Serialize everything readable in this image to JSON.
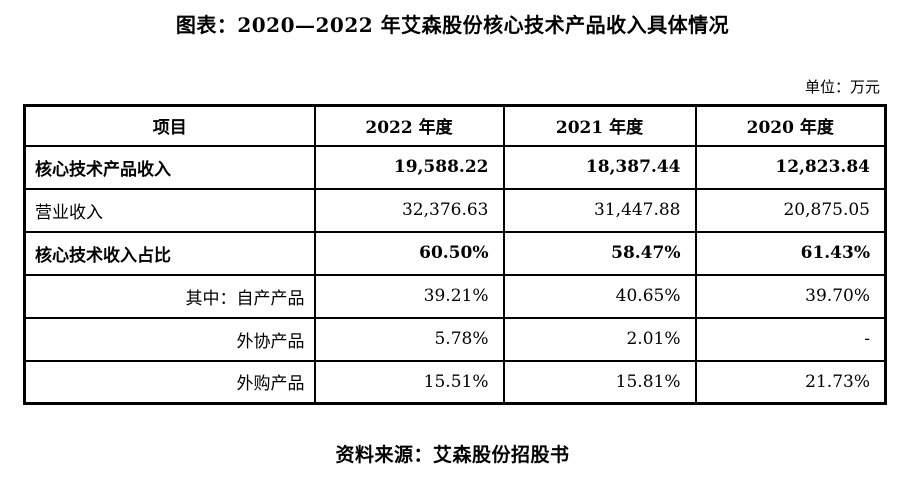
{
  "title": "图表：2020—2022 年艾森股份核心技术产品收入具体情况",
  "unit_label": "单位：万元",
  "source": "资料来源：艾森股份招股书",
  "colors": {
    "text": "#000000",
    "border": "#000000",
    "background": "#ffffff"
  },
  "table": {
    "headers": [
      "项目",
      "2022 年度",
      "2021 年度",
      "2020 年度"
    ],
    "rows": [
      {
        "label": "核心技术产品收入",
        "emphasis": true,
        "values": [
          "19,588.22",
          "18,387.44",
          "12,823.84"
        ]
      },
      {
        "label": "营业收入",
        "emphasis": false,
        "values": [
          "32,376.63",
          "31,447.88",
          "20,875.05"
        ]
      },
      {
        "label": "核心技术收入占比",
        "emphasis": true,
        "values": [
          "60.50%",
          "58.47%",
          "61.43%"
        ]
      },
      {
        "label": "其中：自产产品",
        "emphasis": false,
        "values": [
          "39.21%",
          "40.65%",
          "39.70%"
        ]
      },
      {
        "label": "外协产品",
        "emphasis": false,
        "values": [
          "5.78%",
          "2.01%",
          "-"
        ]
      },
      {
        "label": "外购产品",
        "emphasis": false,
        "values": [
          "15.51%",
          "15.81%",
          "21.73%"
        ]
      }
    ]
  }
}
